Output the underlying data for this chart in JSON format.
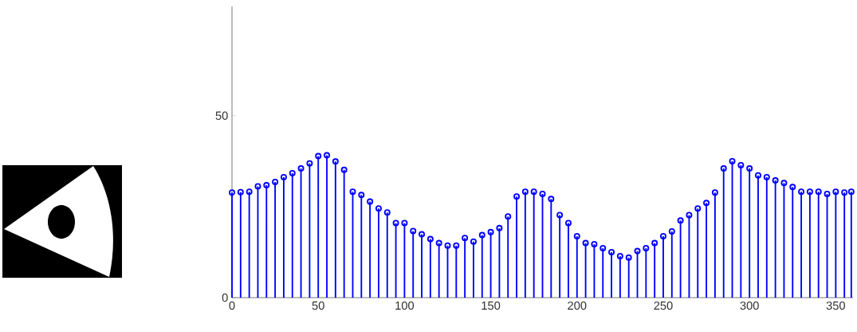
{
  "chart_data": {
    "type": "lollipop",
    "color": "#0000ff",
    "marker": "circle",
    "x": [
      0,
      5,
      10,
      15,
      20,
      25,
      30,
      35,
      40,
      45,
      50,
      55,
      60,
      65,
      70,
      75,
      80,
      85,
      90,
      95,
      100,
      105,
      110,
      115,
      120,
      125,
      130,
      135,
      140,
      145,
      150,
      155,
      160,
      165,
      170,
      175,
      180,
      185,
      190,
      195,
      200,
      205,
      210,
      215,
      220,
      225,
      230,
      235,
      240,
      245,
      250,
      255,
      260,
      265,
      270,
      275,
      280,
      285,
      290,
      295,
      300,
      305,
      310,
      315,
      320,
      325,
      330,
      335,
      340,
      345,
      350,
      355,
      359
    ],
    "values": [
      28.9,
      29,
      29.1,
      30.6,
      30.9,
      31.8,
      33.1,
      34.2,
      35.5,
      36.9,
      38.9,
      39.1,
      37.4,
      35.1,
      29.1,
      28.2,
      26.4,
      24.5,
      23.4,
      20.5,
      20.5,
      18.3,
      17.4,
      16.1,
      15,
      14.3,
      14.3,
      16.4,
      15.4,
      17.2,
      18,
      19.1,
      22.3,
      27.8,
      29.1,
      29.1,
      28.5,
      27.1,
      22.7,
      20.5,
      16.9,
      15,
      14.7,
      13.6,
      12.5,
      11.4,
      11,
      12.8,
      13.6,
      15,
      16.9,
      18.2,
      21.2,
      22.7,
      24.5,
      26,
      28.9,
      35.5,
      37.5,
      36.4,
      35.5,
      33.6,
      33.1,
      32.2,
      31.5,
      30.4,
      29.1,
      29.1,
      29.1,
      28.5,
      29.1,
      28.9,
      29.1
    ],
    "xlim": [
      0,
      360
    ],
    "ylim": [
      0,
      80
    ],
    "xticks": [
      0,
      50,
      100,
      150,
      200,
      250,
      300,
      350
    ],
    "yticks": [
      0,
      50
    ]
  }
}
